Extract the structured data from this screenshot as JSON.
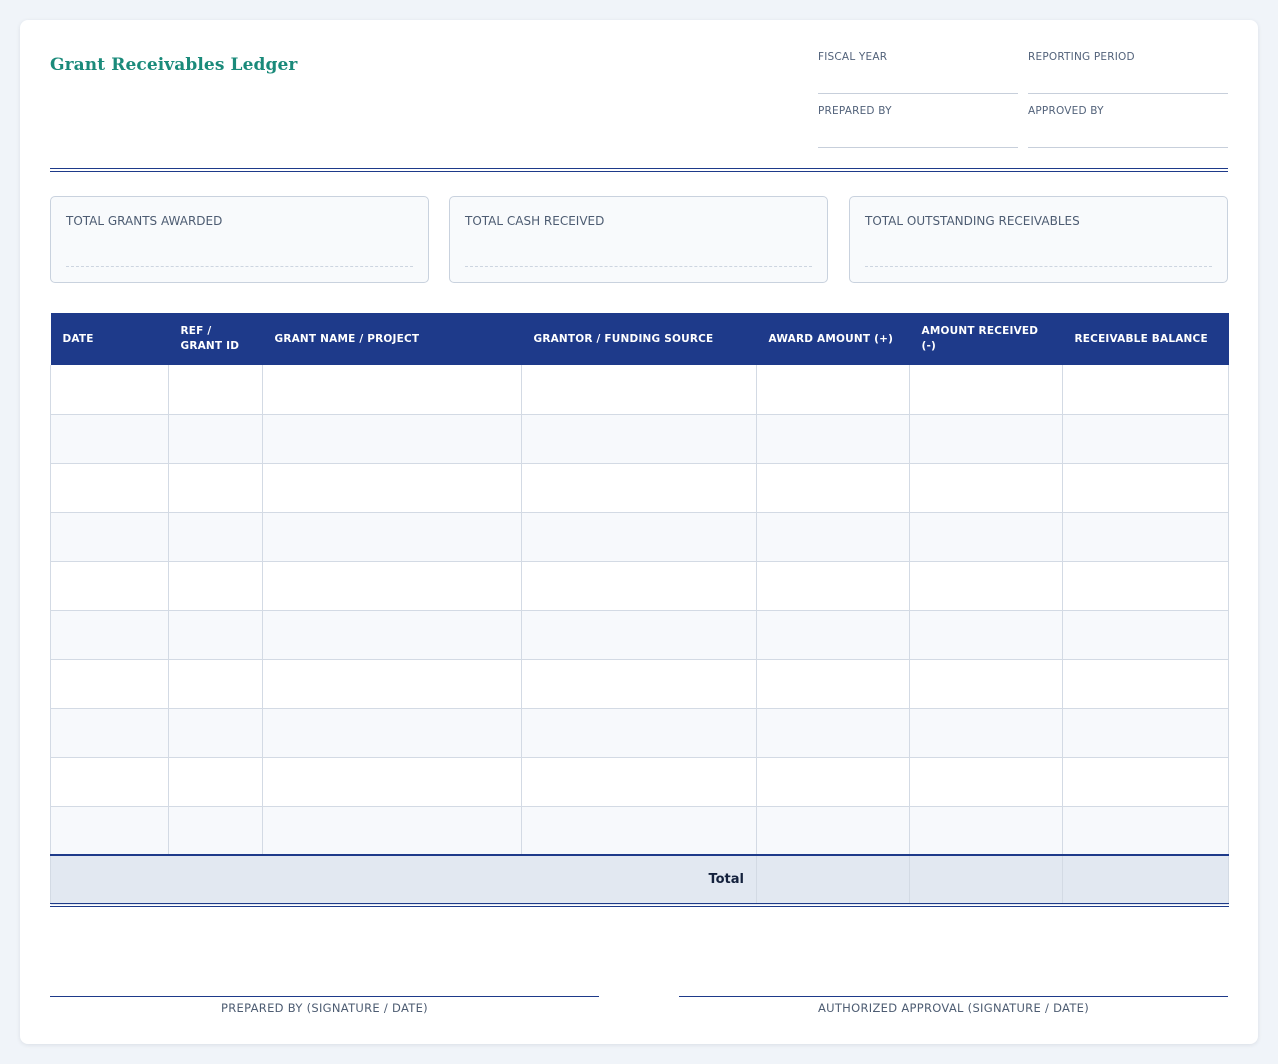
{
  "header": {
    "title": "Grant Receivables Ledger",
    "meta": {
      "fiscal_year_label": "Fiscal Year",
      "reporting_period_label": "Reporting Period",
      "prepared_by_label": "Prepared By",
      "approved_by_label": "Approved By"
    }
  },
  "summary": {
    "total_grants_awarded_label": "Total Grants Awarded",
    "total_cash_received_label": "Total Cash Received",
    "total_outstanding_label": "Total Outstanding Receivables"
  },
  "table": {
    "columns": [
      "Date",
      "Ref / Grant ID",
      "Grant Name / Project",
      "Grantor / Funding Source",
      "Award Amount (+)",
      "Amount Received (-)",
      "Receivable Balance"
    ],
    "columns_line1": [
      "Date",
      "Ref /",
      "Grant Name / Project",
      "Grantor / Funding Source",
      "Award Amount (+)",
      "Amount Received (-)",
      "Receivable Balance"
    ],
    "columns_line2": [
      "",
      "Grant ID",
      "",
      "",
      "",
      "",
      ""
    ],
    "total_label": "Total"
  },
  "signatures": {
    "prepared_label": "Prepared By (Signature / Date)",
    "approval_label": "Authorized Approval (Signature / Date)"
  },
  "colors": {
    "accent": "#1e3a8a",
    "title": "#1a8a7a",
    "total_row": "#e2e8f1"
  }
}
